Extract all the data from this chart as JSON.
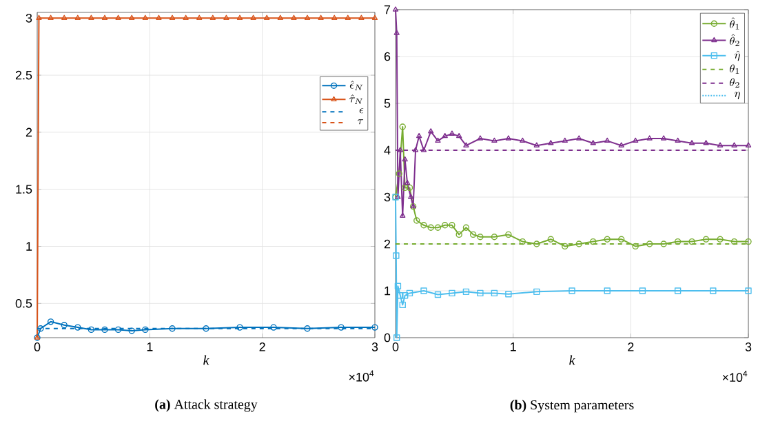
{
  "chart_data": [
    {
      "type": "line",
      "title": "**(a)** Attack strategy",
      "xlabel": "k",
      "annotations": [
        "×10$^{4}$"
      ],
      "xlim": [
        0,
        3
      ],
      "ylim": [
        0.2,
        3.05
      ],
      "xticks": [
        0,
        1,
        2,
        3
      ],
      "yticks": [
        0.5,
        1,
        1.5,
        2,
        2.5,
        3
      ],
      "grid": true,
      "legend": "right",
      "series": [
        {
          "name": "\\hat{\\epsilon}_N",
          "color": "#0072bd",
          "marker": "circle",
          "line_style": "solid",
          "x": [
            0,
            0.03,
            0.12,
            0.24,
            0.36,
            0.48,
            0.6,
            0.72,
            0.84,
            0.96,
            1.2,
            1.5,
            1.8,
            2.1,
            2.4,
            2.7,
            3
          ],
          "values": [
            0.2,
            0.28,
            0.34,
            0.31,
            0.29,
            0.27,
            0.27,
            0.27,
            0.26,
            0.27,
            0.28,
            0.28,
            0.29,
            0.29,
            0.28,
            0.29,
            0.29
          ]
        },
        {
          "name": "\\hat{\\tau}_N",
          "color": "#d95319",
          "marker": "triangle",
          "line_style": "solid",
          "x": [
            0,
            0.015,
            0.12,
            0.24,
            0.36,
            0.48,
            0.6,
            0.72,
            0.84,
            0.96,
            1.08,
            1.2,
            1.32,
            1.44,
            1.56,
            1.68,
            1.8,
            1.92,
            2.04,
            2.16,
            2.28,
            2.4,
            2.52,
            2.64,
            2.76,
            2.88,
            3
          ],
          "values": [
            0.2,
            3,
            3,
            3,
            3,
            3,
            3,
            3,
            3,
            3,
            3,
            3,
            3,
            3,
            3,
            3,
            3,
            3,
            3,
            3,
            3,
            3,
            3,
            3,
            3,
            3,
            3
          ]
        },
        {
          "name": "\\epsilon",
          "color": "#0072bd",
          "marker": "none",
          "line_style": "dashed",
          "x": [
            0,
            3
          ],
          "values": [
            0.28,
            0.28
          ]
        },
        {
          "name": "\\tau",
          "color": "#d95319",
          "marker": "none",
          "line_style": "dashed",
          "values": [
            null,
            null
          ]
        }
      ]
    },
    {
      "type": "line",
      "title": "**(b)** System parameters",
      "xlabel": "k",
      "annotations": [
        "×10$^{4}$"
      ],
      "xlim": [
        0,
        3
      ],
      "ylim": [
        0,
        7
      ],
      "xticks": [
        0,
        1,
        2,
        3
      ],
      "yticks": [
        0,
        1,
        2,
        3,
        4,
        5,
        6,
        7
      ],
      "grid": true,
      "legend": "top right",
      "series": [
        {
          "name": "\\hat{\\theta}_1",
          "color": "#77ac30",
          "marker": "circle",
          "line_style": "solid",
          "x": [
            0,
            0.03,
            0.06,
            0.08,
            0.12,
            0.15,
            0.18,
            0.24,
            0.3,
            0.36,
            0.42,
            0.48,
            0.54,
            0.6,
            0.66,
            0.72,
            0.84,
            0.96,
            1.08,
            1.2,
            1.32,
            1.44,
            1.56,
            1.68,
            1.8,
            1.92,
            2.04,
            2.16,
            2.28,
            2.4,
            2.52,
            2.64,
            2.76,
            2.88,
            3
          ],
          "values": [
            3,
            3.5,
            4.5,
            3.2,
            3.2,
            2.8,
            2.5,
            2.4,
            2.35,
            2.35,
            2.4,
            2.4,
            2.2,
            2.35,
            2.2,
            2.15,
            2.15,
            2.2,
            2.05,
            2.0,
            2.1,
            1.95,
            2.0,
            2.05,
            2.1,
            2.1,
            1.95,
            2.0,
            2.0,
            2.05,
            2.05,
            2.1,
            2.1,
            2.05,
            2.05
          ]
        },
        {
          "name": "\\hat{\\theta}_2",
          "color": "#7e2f8e",
          "marker": "triangle",
          "line_style": "solid",
          "x": [
            0,
            0.01,
            0.02,
            0.04,
            0.06,
            0.08,
            0.1,
            0.13,
            0.15,
            0.17,
            0.2,
            0.24,
            0.3,
            0.36,
            0.42,
            0.48,
            0.54,
            0.6,
            0.72,
            0.84,
            0.96,
            1.08,
            1.2,
            1.32,
            1.44,
            1.56,
            1.68,
            1.8,
            1.92,
            2.04,
            2.16,
            2.28,
            2.4,
            2.52,
            2.64,
            2.76,
            2.88,
            3
          ],
          "values": [
            7,
            6.5,
            3,
            4,
            2.6,
            3.8,
            3.3,
            3.0,
            2.8,
            4.0,
            4.3,
            4.0,
            4.4,
            4.2,
            4.3,
            4.35,
            4.3,
            4.1,
            4.25,
            4.2,
            4.25,
            4.2,
            4.1,
            4.15,
            4.2,
            4.25,
            4.15,
            4.2,
            4.1,
            4.2,
            4.25,
            4.25,
            4.2,
            4.15,
            4.15,
            4.1,
            4.1,
            4.1
          ]
        },
        {
          "name": "\\hat{\\eta}",
          "color": "#4dbeee",
          "marker": "square",
          "line_style": "solid",
          "x": [
            0,
            0.005,
            0.01,
            0.02,
            0.04,
            0.06,
            0.08,
            0.12,
            0.24,
            0.36,
            0.48,
            0.6,
            0.72,
            0.84,
            0.96,
            1.2,
            1.5,
            1.8,
            2.1,
            2.4,
            2.7,
            3
          ],
          "values": [
            3,
            1.75,
            0,
            1.1,
            0.9,
            0.7,
            0.9,
            0.95,
            1.0,
            0.92,
            0.95,
            0.98,
            0.95,
            0.95,
            0.93,
            0.98,
            1.0,
            1.0,
            1.0,
            1.0,
            1.0,
            1.0
          ]
        },
        {
          "name": "\\theta_1",
          "color": "#77ac30",
          "marker": "none",
          "line_style": "dashed",
          "x": [
            0,
            3
          ],
          "values": [
            2,
            2
          ]
        },
        {
          "name": "\\theta_2",
          "color": "#7e2f8e",
          "marker": "none",
          "line_style": "dashed",
          "x": [
            0,
            3
          ],
          "values": [
            4,
            4
          ]
        },
        {
          "name": "\\eta",
          "color": "#4dbeee",
          "marker": "none",
          "line_style": "dotted",
          "values": [
            null,
            null
          ]
        }
      ]
    }
  ]
}
